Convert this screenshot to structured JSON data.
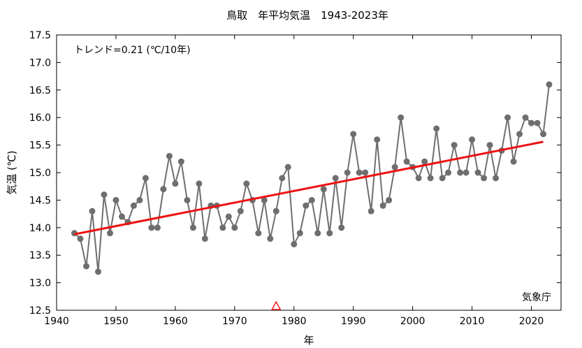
{
  "chart_data": {
    "type": "line",
    "title": "鳥取　年平均気温　1943-2023年",
    "xlabel": "年",
    "ylabel": "気温 (℃)",
    "xlim": [
      1940,
      2025
    ],
    "ylim": [
      12.5,
      17.5
    ],
    "xticks": [
      1940,
      1950,
      1960,
      1970,
      1980,
      1990,
      2000,
      2010,
      2020
    ],
    "yticks": [
      12.5,
      13.0,
      13.5,
      14.0,
      14.5,
      15.0,
      15.5,
      16.0,
      16.5,
      17.0,
      17.5
    ],
    "grid": false,
    "trend_label": "トレンド=0.21 (℃/10年)",
    "source_label": "気象庁",
    "colors": {
      "series": "#6e6e6e",
      "trend": "#ee1111",
      "marker_triangle": "#ee1111"
    },
    "marker_years": [
      1977
    ],
    "series": [
      {
        "x": [
          1943,
          1944,
          1945,
          1946,
          1947,
          1948,
          1949,
          1950,
          1951,
          1952,
          1953,
          1954,
          1955,
          1956,
          1957,
          1958,
          1959,
          1960,
          1961,
          1962,
          1963,
          1964,
          1965,
          1966,
          1967,
          1968,
          1969,
          1970,
          1971,
          1972,
          1973,
          1974,
          1975,
          1976,
          1977,
          1978,
          1979,
          1980,
          1981,
          1982,
          1983,
          1984,
          1985,
          1986,
          1987,
          1988,
          1989,
          1990,
          1991,
          1992,
          1993,
          1994,
          1995,
          1996,
          1997,
          1998,
          1999,
          2000,
          2001,
          2002,
          2003,
          2004,
          2005,
          2006,
          2007,
          2008,
          2009,
          2010,
          2011,
          2012,
          2013,
          2014,
          2015,
          2016,
          2017,
          2018,
          2019,
          2020,
          2021,
          2022,
          2023
        ],
        "values": [
          13.9,
          13.8,
          13.3,
          14.3,
          13.2,
          14.6,
          13.9,
          14.5,
          14.2,
          14.1,
          14.4,
          14.5,
          14.9,
          14.0,
          14.0,
          14.7,
          15.3,
          14.8,
          15.2,
          14.5,
          14.0,
          14.8,
          13.8,
          14.4,
          14.4,
          14.0,
          14.2,
          14.0,
          14.3,
          14.8,
          14.5,
          13.9,
          14.5,
          13.8,
          14.3,
          14.9,
          15.1,
          13.7,
          13.9,
          14.4,
          14.5,
          13.9,
          14.7,
          13.9,
          14.9,
          14.0,
          15.0,
          15.7,
          15.0,
          15.0,
          14.3,
          15.6,
          14.4,
          14.5,
          15.1,
          16.0,
          15.2,
          15.1,
          14.9,
          15.2,
          14.9,
          15.8,
          14.9,
          15.0,
          15.5,
          15.0,
          15.0,
          15.6,
          15.0,
          14.9,
          15.5,
          14.9,
          15.4,
          16.0,
          15.2,
          15.7,
          16.0,
          15.9,
          15.9,
          15.7,
          16.6
        ]
      }
    ],
    "trend": {
      "x": [
        1943,
        2022
      ],
      "values": [
        13.88,
        15.56
      ]
    }
  }
}
